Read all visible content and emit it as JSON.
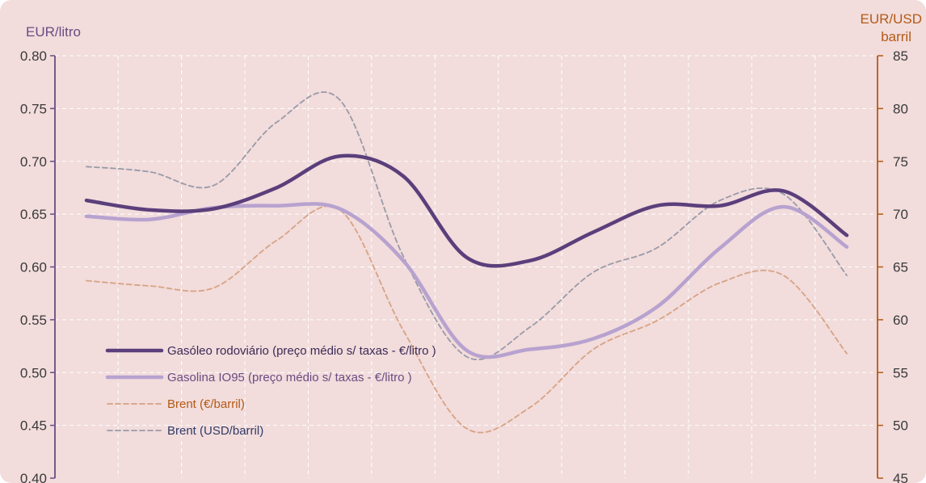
{
  "colors": {
    "panel_bg": "#f2dcdc",
    "grid": "#ffffff",
    "left_axis": "#6b4c82",
    "right_axis": "#b35a14",
    "gasoleo": "#5b3f7b",
    "gasolina": "#b7a2cf",
    "brent_eur": "#d7a383",
    "brent_usd": "#9a9aa8"
  },
  "chart_data": {
    "type": "line",
    "title": "",
    "x": [
      0,
      1,
      2,
      3,
      4,
      5,
      6,
      7,
      8,
      9,
      10,
      11,
      12
    ],
    "xlabel": "",
    "y_left": {
      "label": "EUR/litro",
      "range": [
        0.4,
        0.8
      ],
      "ticks": [
        "0.40",
        "0.45",
        "0.50",
        "0.55",
        "0.60",
        "0.65",
        "0.70",
        "0.75",
        "0.80"
      ]
    },
    "y_right": {
      "label_line1": "EUR/USD",
      "label_line2": "barril",
      "range": [
        45,
        85
      ],
      "ticks": [
        "45",
        "50",
        "55",
        "60",
        "65",
        "70",
        "75",
        "80",
        "85"
      ]
    },
    "grid": true,
    "legend_position": "bottom-left",
    "series": [
      {
        "name": "Gasóleo rodoviário (preço médio s/ taxas - €/litro )",
        "axis": "left",
        "style": "solid-thick",
        "values": [
          0.663,
          0.654,
          0.655,
          0.675,
          0.705,
          0.686,
          0.609,
          0.606,
          0.633,
          0.658,
          0.658,
          0.672,
          0.63
        ]
      },
      {
        "name": "Gasolina IO95 (preço médio s/ taxas - €/litro )",
        "axis": "left",
        "style": "solid-thick",
        "values": [
          0.648,
          0.645,
          0.656,
          0.658,
          0.655,
          0.606,
          0.521,
          0.522,
          0.532,
          0.562,
          0.618,
          0.657,
          0.619
        ]
      },
      {
        "name": "Brent (€/barril)",
        "axis": "right",
        "style": "dashed",
        "values": [
          63.7,
          63.2,
          63.0,
          67.5,
          70.4,
          59.0,
          49.7,
          51.7,
          57.2,
          59.9,
          63.5,
          64.2,
          56.8
        ]
      },
      {
        "name": "Brent (USD/barril)",
        "axis": "right",
        "style": "dashed",
        "values": [
          74.5,
          74.0,
          72.7,
          78.7,
          80.8,
          66.0,
          56.5,
          59.3,
          64.5,
          66.8,
          71.3,
          71.9,
          64.2
        ]
      }
    ]
  }
}
